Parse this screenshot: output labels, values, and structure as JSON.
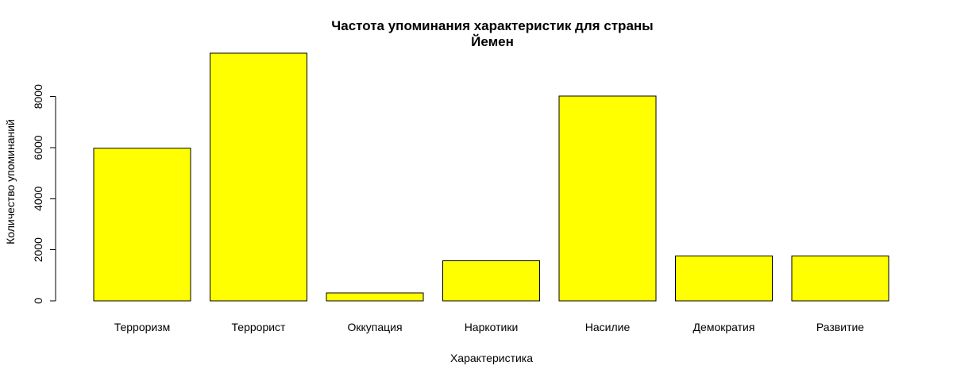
{
  "chart_data": {
    "type": "bar",
    "title": "Частота упоминания  характеристик для страны",
    "subtitle": "Йемен",
    "xlabel": "Характеристика",
    "ylabel": "Количество упоминаний",
    "categories": [
      "Терроризм",
      "Террорист",
      "Оккупация",
      "Наркотики",
      "Насилие",
      "Демократия",
      "Развитие"
    ],
    "values": [
      5980,
      9700,
      310,
      1570,
      8020,
      1760,
      1760
    ],
    "ylim": [
      0,
      9700
    ],
    "yticks": [
      0,
      2000,
      4000,
      6000,
      8000
    ],
    "ytick_labels": [
      "0",
      "2000",
      "4000",
      "6000",
      "8000"
    ],
    "bar_color": "#ffff00",
    "border_color": "#000000",
    "grid": false,
    "legend": "none"
  }
}
